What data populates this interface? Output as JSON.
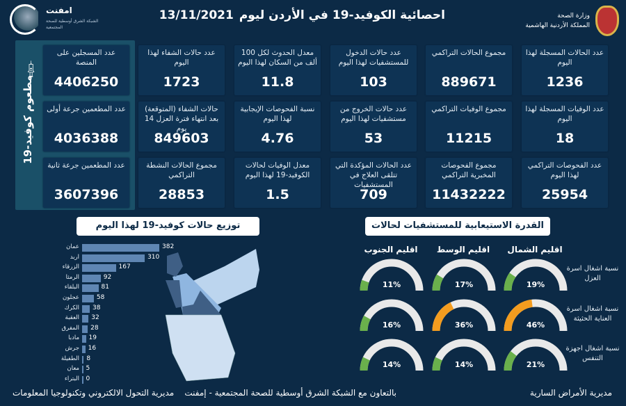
{
  "header": {
    "title": "احصائية الكوفيد-19 في الأردن ليوم",
    "date": "13/11/2021",
    "ministry": [
      "وزارة الصحة",
      "المملكة الأردنية الهاشمية"
    ],
    "partner_logo": {
      "name": "امفنت",
      "subtitle": "الشبكة الشرق أوسطية للصحة المجتمعية"
    }
  },
  "vaccine": {
    "title": "مطعوم كوفيد-19",
    "cards": [
      {
        "label": "عدد المسجلين على المنصة",
        "value": "4406250"
      },
      {
        "label": "عدد المطعمين جرعة أولى",
        "value": "4036388"
      },
      {
        "label": "عدد المطعمين جرعة ثانية",
        "value": "3607396"
      }
    ]
  },
  "stats": [
    [
      {
        "label": "عدد الحالات المسجلة لهذا اليوم",
        "value": "1236"
      },
      {
        "label": "مجموع الحالات التراكمي",
        "value": "889671"
      },
      {
        "label": "عدد حالات الدخول للمستشفيات لهذا اليوم",
        "value": "103"
      },
      {
        "label": "معدل الحدوث لكل 100 ألف من السكان لهذا اليوم",
        "value": "11.8"
      },
      {
        "label": "عدد حالات الشفاء لهذا اليوم",
        "value": "1723"
      }
    ],
    [
      {
        "label": "عدد الوفيات المسجلة لهذا اليوم",
        "value": "18"
      },
      {
        "label": "مجموع الوفيات التراكمي",
        "value": "11215"
      },
      {
        "label": "عدد حالات الخروج من مستشفيات لهذا اليوم",
        "value": "53"
      },
      {
        "label": "نسبة الفحوصات الإيجابية لهذا اليوم",
        "value": "4.76"
      },
      {
        "label": "حالات الشفاء (المتوقعة) بعد انتهاء فترة العزل 14 يوم",
        "value": "849603"
      }
    ],
    [
      {
        "label": "عدد الفحوصات التراكمي لهذا اليوم",
        "value": "25954"
      },
      {
        "label": "مجموع الفحوصات المخبرية التراكمي",
        "value": "11432222"
      },
      {
        "label": "عدد الحالات المؤكدة التي تتلقى العلاج في المستشفيات",
        "value": "709"
      },
      {
        "label": "معدل الوفيات لحالات الكوفيد-19 لهذا اليوم",
        "value": "1.5"
      },
      {
        "label": "مجموع الحالات النشطة التراكمي",
        "value": "28853"
      }
    ]
  ],
  "chart_data": {
    "type": "bar",
    "title": "توزيع حالات كوفيد-19 لهذا اليوم",
    "categories": [
      "عمان",
      "اربد",
      "الزرقاء",
      "الرمثا",
      "البلقاء",
      "عجلون",
      "الكرك",
      "العقبة",
      "المفرق",
      "مادبا",
      "جرش",
      "الطفيلة",
      "معان",
      "البتراء"
    ],
    "values": [
      382,
      310,
      167,
      92,
      81,
      58,
      38,
      32,
      28,
      19,
      16,
      8,
      5,
      0
    ],
    "bar_color": "#5f86b3"
  },
  "capacity": {
    "title": "القدرة الاستيعابية للمستشفيات لحالات كوفيد-19",
    "regions": [
      "اقليم الشمال",
      "اقليم الوسط",
      "اقليم الجنوب"
    ],
    "rows": [
      {
        "label": "نسبة اشغال اسرة العزل",
        "values": [
          19,
          17,
          11
        ]
      },
      {
        "label": "نسبة اشغال اسرة العناية الحثيثة",
        "values": [
          46,
          36,
          16
        ]
      },
      {
        "label": "نسبة اشغال اجهزة التنفس",
        "values": [
          21,
          14,
          14
        ]
      }
    ],
    "colors": {
      "low": "#6ab04c",
      "mid": "#f39c1f",
      "track": "#e9e9e9"
    }
  },
  "footer": [
    "مديرية الأمراض السارية",
    "بالتعاون مع الشبكة الشرق أوسطية للصحة المجتمعية - إمفنت",
    "مديرية التحول الالكتروني وتكنولوجيا المعلومات"
  ]
}
